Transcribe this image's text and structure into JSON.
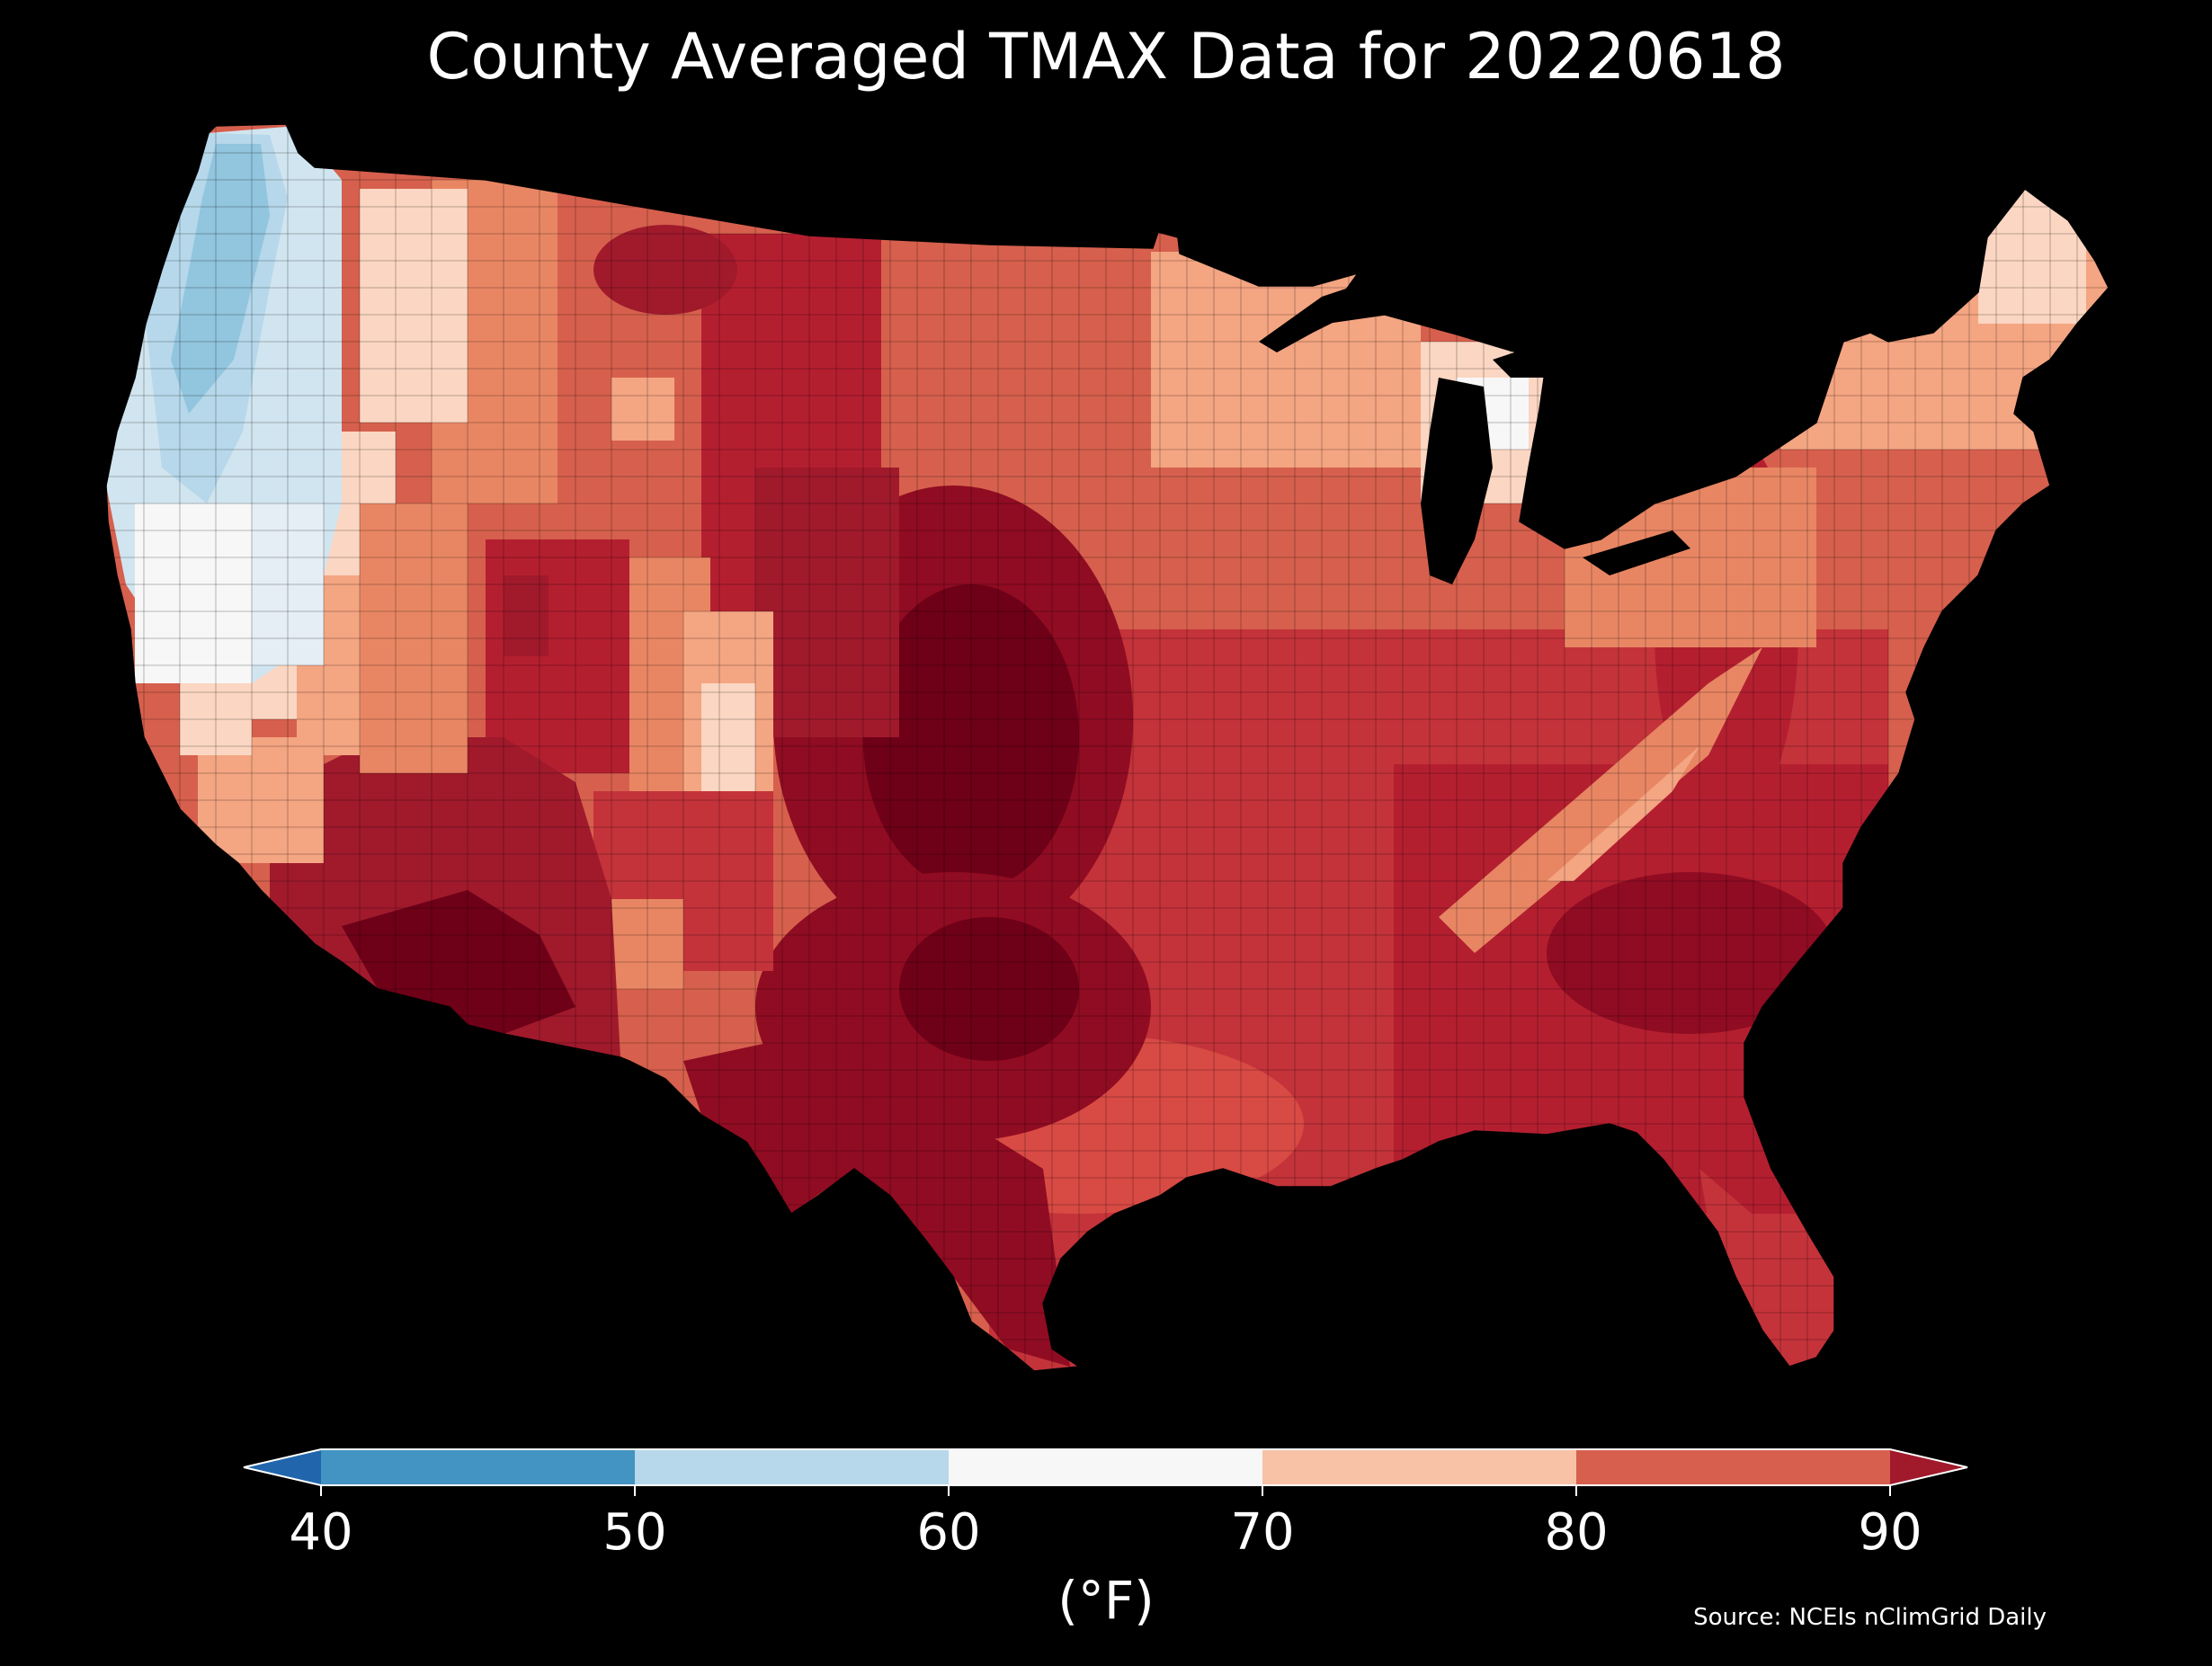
{
  "title": "County Averaged TMAX Data for 20220618",
  "source_note": "Source: NCEIs nClimGrid Daily",
  "map": {
    "region": "contiguous United States",
    "unit_of_area": "county",
    "variable": "TMAX",
    "date": "20220618",
    "background_color": "#000000",
    "county_border_color": "#000000"
  },
  "colorbar": {
    "label": "(°F)",
    "ticks": [
      "40",
      "50",
      "60",
      "70",
      "80",
      "90"
    ],
    "bins": [
      {
        "range": [
          null,
          40
        ],
        "color": "#2166ac",
        "extend": "min"
      },
      {
        "range": [
          40,
          50
        ],
        "color": "#4393c3"
      },
      {
        "range": [
          50,
          60
        ],
        "color": "#b6d8ea"
      },
      {
        "range": [
          60,
          70
        ],
        "color": "#f7f7f7"
      },
      {
        "range": [
          70,
          80
        ],
        "color": "#f8c2a6"
      },
      {
        "range": [
          80,
          90
        ],
        "color": "#d6604d"
      },
      {
        "range": [
          90,
          null
        ],
        "color": "#a01a2c",
        "extend": "max"
      }
    ]
  }
}
